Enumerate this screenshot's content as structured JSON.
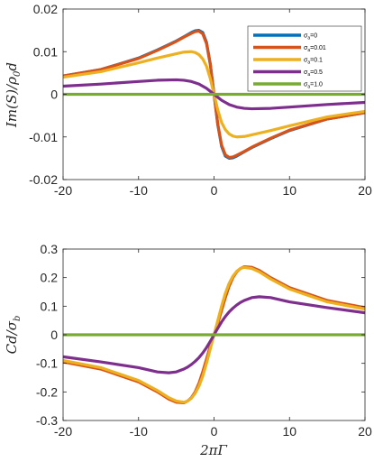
{
  "colors": {
    "sigma0": "#0072BD",
    "sigma001": "#D95319",
    "sigma01": "#EDB120",
    "sigma05": "#7E2F8E",
    "sigma1": "#77AC30"
  },
  "chart_data": [
    {
      "type": "line",
      "ylabel": "Im(S)/ρ₀d",
      "xlabel": "",
      "xlim": [
        -20,
        20
      ],
      "ylim": [
        -0.02,
        0.02
      ],
      "xticks": [
        "-20",
        "-10",
        "0",
        "10",
        "20"
      ],
      "yticks": [
        "-0.02",
        "-0.01",
        "0",
        "0.01",
        "0.02"
      ],
      "legend_position": "top-right",
      "legend": [
        {
          "key": "sigma0",
          "sub": "a",
          "label": "=0"
        },
        {
          "key": "sigma001",
          "sub": "a",
          "label": "=0.01"
        },
        {
          "key": "sigma01",
          "sub": "a",
          "label": "=0.1"
        },
        {
          "key": "sigma05",
          "sub": "a",
          "label": "=0.5"
        },
        {
          "key": "sigma1",
          "sub": "a",
          "label": "=1.0"
        }
      ],
      "x": [
        -20,
        -15,
        -10,
        -7.5,
        -5,
        -4,
        -3,
        -2.5,
        -2,
        -1.5,
        -1,
        -0.5,
        0,
        0.5,
        1,
        1.5,
        2,
        2.5,
        3,
        4,
        5,
        7.5,
        10,
        15,
        20
      ],
      "series": [
        {
          "key": "sigma0",
          "values": [
            0.0043,
            0.0058,
            0.0085,
            0.0104,
            0.0125,
            0.0135,
            0.0145,
            0.0149,
            0.015,
            0.0145,
            0.0122,
            0.0072,
            0,
            -0.0072,
            -0.0122,
            -0.0145,
            -0.015,
            -0.0149,
            -0.0145,
            -0.0135,
            -0.0125,
            -0.0104,
            -0.0085,
            -0.0058,
            -0.0043
          ]
        },
        {
          "key": "sigma001",
          "values": [
            0.0043,
            0.0058,
            0.0084,
            0.0103,
            0.0124,
            0.0134,
            0.0143,
            0.0147,
            0.0148,
            0.0142,
            0.0119,
            0.007,
            0,
            -0.007,
            -0.0119,
            -0.0142,
            -0.0148,
            -0.0147,
            -0.0143,
            -0.0134,
            -0.0124,
            -0.0103,
            -0.0084,
            -0.0058,
            -0.0043
          ]
        },
        {
          "key": "sigma01",
          "values": [
            0.004,
            0.0053,
            0.0074,
            0.0085,
            0.0095,
            0.0099,
            0.01,
            0.0098,
            0.0093,
            0.0083,
            0.0066,
            0.0037,
            0,
            -0.0037,
            -0.0066,
            -0.0083,
            -0.0093,
            -0.0098,
            -0.01,
            -0.0099,
            -0.0095,
            -0.0085,
            -0.0074,
            -0.0053,
            -0.004
          ]
        },
        {
          "key": "sigma05",
          "values": [
            0.0019,
            0.0024,
            0.003,
            0.0033,
            0.0034,
            0.0033,
            0.003,
            0.0027,
            0.0024,
            0.0019,
            0.0014,
            0.0007,
            0,
            -0.0007,
            -0.0014,
            -0.0019,
            -0.0024,
            -0.0027,
            -0.003,
            -0.0033,
            -0.0034,
            -0.0033,
            -0.003,
            -0.0024,
            -0.0019
          ]
        },
        {
          "key": "sigma1",
          "values": [
            0,
            0,
            0,
            0,
            0,
            0,
            0,
            0,
            0,
            0,
            0,
            0,
            0,
            0,
            0,
            0,
            0,
            0,
            0,
            0,
            0,
            0,
            0,
            0,
            0
          ]
        }
      ]
    },
    {
      "type": "line",
      "ylabel": "Cd/σ_b",
      "xlabel": "2πΓ",
      "xlim": [
        -20,
        20
      ],
      "ylim": [
        -0.3,
        0.3
      ],
      "xticks": [
        "-20",
        "-10",
        "0",
        "10",
        "20"
      ],
      "yticks": [
        "-0.3",
        "-0.2",
        "-0.1",
        "0",
        "0.1",
        "0.2",
        "0.3"
      ],
      "x": [
        -20,
        -15,
        -10,
        -7.5,
        -6,
        -5,
        -4,
        -3.5,
        -3,
        -2.5,
        -2,
        -1.5,
        -1,
        -0.5,
        0,
        0.5,
        1,
        1.5,
        2,
        2.5,
        3,
        3.5,
        4,
        5,
        6,
        7.5,
        10,
        15,
        20
      ],
      "series": [
        {
          "key": "sigma001",
          "values": [
            -0.095,
            -0.12,
            -0.165,
            -0.2,
            -0.225,
            -0.236,
            -0.238,
            -0.232,
            -0.22,
            -0.2,
            -0.17,
            -0.13,
            -0.085,
            -0.04,
            0,
            0.04,
            0.085,
            0.13,
            0.17,
            0.2,
            0.22,
            0.232,
            0.238,
            0.236,
            0.225,
            0.2,
            0.165,
            0.12,
            0.095
          ]
        },
        {
          "key": "sigma01",
          "values": [
            -0.09,
            -0.115,
            -0.16,
            -0.195,
            -0.22,
            -0.232,
            -0.236,
            -0.232,
            -0.222,
            -0.205,
            -0.18,
            -0.145,
            -0.1,
            -0.05,
            0,
            0.05,
            0.1,
            0.145,
            0.18,
            0.205,
            0.222,
            0.232,
            0.236,
            0.232,
            0.22,
            0.195,
            0.16,
            0.115,
            0.09
          ]
        },
        {
          "key": "sigma05",
          "values": [
            -0.077,
            -0.095,
            -0.115,
            -0.13,
            -0.133,
            -0.13,
            -0.12,
            -0.113,
            -0.104,
            -0.093,
            -0.08,
            -0.064,
            -0.045,
            -0.023,
            0,
            0.023,
            0.045,
            0.064,
            0.08,
            0.093,
            0.104,
            0.113,
            0.12,
            0.13,
            0.133,
            0.13,
            0.115,
            0.095,
            0.077
          ]
        },
        {
          "key": "sigma1",
          "values": [
            0,
            0,
            0,
            0,
            0,
            0,
            0,
            0,
            0,
            0,
            0,
            0,
            0,
            0,
            0,
            0,
            0,
            0,
            0,
            0,
            0,
            0,
            0,
            0,
            0,
            0,
            0,
            0,
            0
          ]
        }
      ]
    }
  ]
}
